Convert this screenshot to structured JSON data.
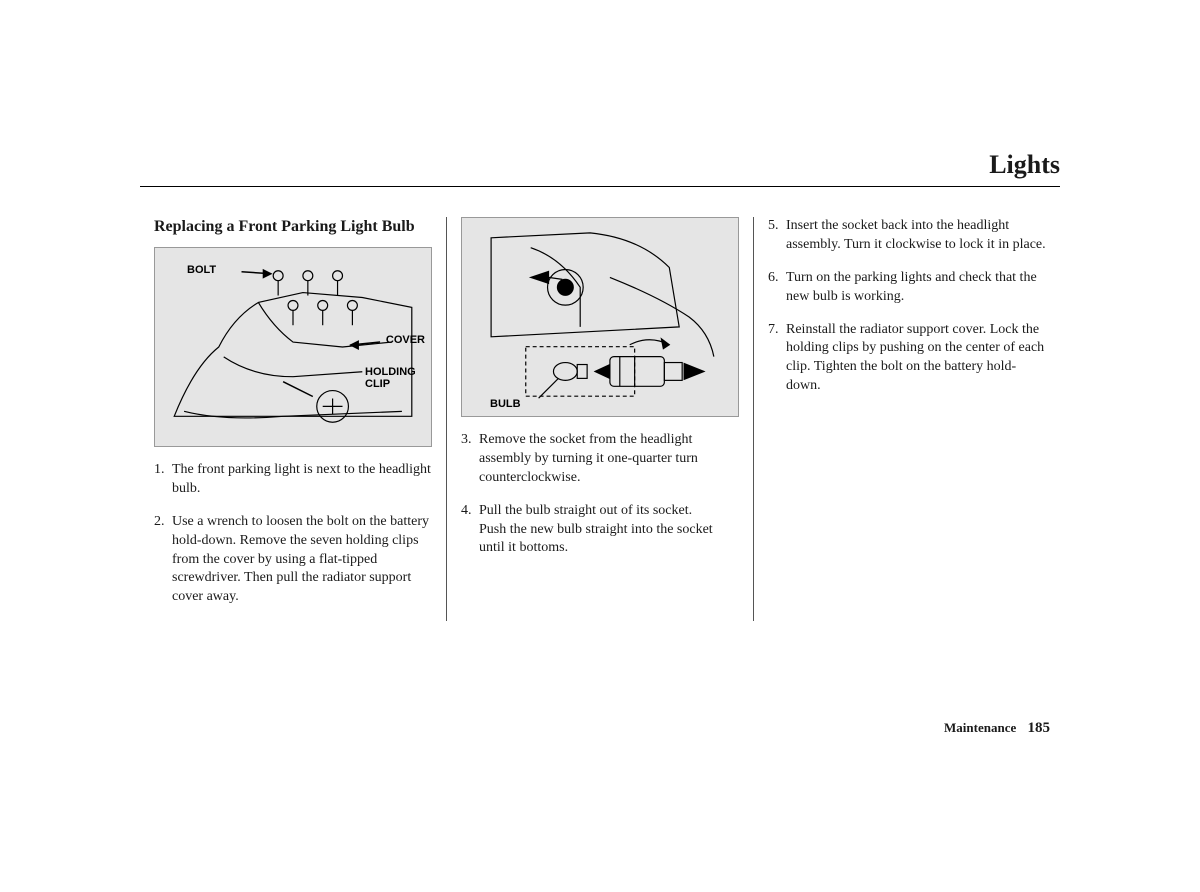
{
  "page_title": "Lights",
  "subheading": "Replacing a Front Parking Light Bulb",
  "figure1": {
    "labels": {
      "bolt": "BOLT",
      "cover": "COVER",
      "holding_clip": "HOLDING CLIP"
    },
    "bg": "#e5e5e5",
    "stroke": "#000000"
  },
  "figure2": {
    "labels": {
      "bulb": "BULB"
    },
    "bg": "#e5e5e5",
    "stroke": "#000000"
  },
  "column1_steps": [
    {
      "n": "1.",
      "text": "The front parking light is next to the headlight bulb."
    },
    {
      "n": "2.",
      "text": "Use a wrench to loosen the bolt on the battery hold-down. Remove the seven holding clips from the cover by using a flat-tipped screwdriver. Then pull the radiator support cover away."
    }
  ],
  "column2_steps": [
    {
      "n": "3.",
      "text": "Remove the socket from the headlight assembly by turning it one-quarter turn counterclockwise."
    },
    {
      "n": "4.",
      "text": "Pull the bulb straight out of its socket.\nPush the new bulb straight into the socket until it bottoms."
    }
  ],
  "column3_steps": [
    {
      "n": "5.",
      "text": "Insert the socket back into the headlight assembly. Turn it clockwise to lock it in place."
    },
    {
      "n": "6.",
      "text": "Turn on the parking lights and check that the new bulb is working."
    },
    {
      "n": "7.",
      "text": "Reinstall the radiator support cover. Lock the holding clips by pushing on the center of each clip. Tighten the bolt on the battery hold-down."
    }
  ],
  "footer": {
    "section": "Maintenance",
    "page": "185"
  },
  "style": {
    "body_fontsize": 14,
    "title_fontsize": 26,
    "subheading_fontsize": 16,
    "label_fontsize": 11,
    "text_color": "#1a1a1a",
    "rule_color": "#000000",
    "column_divider_color": "#555555",
    "figure_bg": "#e5e5e5"
  }
}
